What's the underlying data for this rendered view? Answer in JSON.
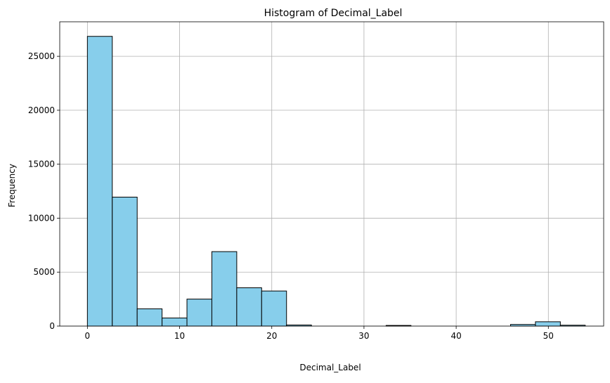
{
  "chart_data": {
    "type": "bar",
    "title": "Histogram of Decimal_Label",
    "xlabel": "Decimal_Label",
    "ylabel": "Frequency",
    "xlim": [
      -3,
      56
    ],
    "ylim": [
      0,
      28200
    ],
    "bin_width": 2.7,
    "bins": [
      {
        "start": 0,
        "end": 2.7,
        "value": 26850
      },
      {
        "start": 2.7,
        "end": 5.4,
        "value": 11950
      },
      {
        "start": 5.4,
        "end": 8.1,
        "value": 1600
      },
      {
        "start": 8.1,
        "end": 10.8,
        "value": 750
      },
      {
        "start": 10.8,
        "end": 13.5,
        "value": 2500
      },
      {
        "start": 13.5,
        "end": 16.2,
        "value": 6900
      },
      {
        "start": 16.2,
        "end": 18.9,
        "value": 3550
      },
      {
        "start": 18.9,
        "end": 21.6,
        "value": 3250
      },
      {
        "start": 21.6,
        "end": 24.3,
        "value": 100
      },
      {
        "start": 24.3,
        "end": 27.0,
        "value": 0
      },
      {
        "start": 27.0,
        "end": 29.7,
        "value": 0
      },
      {
        "start": 29.7,
        "end": 32.4,
        "value": 0
      },
      {
        "start": 32.4,
        "end": 35.1,
        "value": 60
      },
      {
        "start": 35.1,
        "end": 37.8,
        "value": 0
      },
      {
        "start": 37.8,
        "end": 40.5,
        "value": 0
      },
      {
        "start": 40.5,
        "end": 43.2,
        "value": 0
      },
      {
        "start": 43.2,
        "end": 45.9,
        "value": 0
      },
      {
        "start": 45.9,
        "end": 48.6,
        "value": 150
      },
      {
        "start": 48.6,
        "end": 51.3,
        "value": 400
      },
      {
        "start": 51.3,
        "end": 54.0,
        "value": 80
      }
    ],
    "xticks": [
      0,
      10,
      20,
      30,
      40,
      50
    ],
    "xtick_labels": [
      "0",
      "10",
      "20",
      "30",
      "40",
      "50"
    ],
    "yticks": [
      0,
      5000,
      10000,
      15000,
      20000,
      25000
    ],
    "ytick_labels": [
      "0",
      "5000",
      "10000",
      "15000",
      "20000",
      "25000"
    ],
    "grid": true,
    "bar_color": "#87CEEB",
    "edge_color": "#000000",
    "grid_color": "#b0b0b0"
  }
}
